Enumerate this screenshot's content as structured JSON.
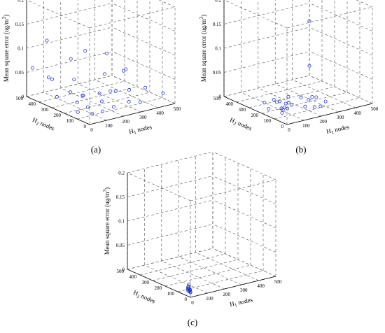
{
  "chart_data": [
    {
      "type": "scatter",
      "caption": "(a)",
      "zlabel": "Mean square error (ug/m3)",
      "xlabel": "H1 nodes",
      "ylabel": "H2 nodes",
      "xlim": [
        0,
        500
      ],
      "ylim": [
        0,
        500
      ],
      "zlim": [
        0,
        0.2
      ],
      "xticks": [
        "0",
        "100",
        "200",
        "300",
        "400",
        "500"
      ],
      "yticks": [
        "0",
        "100",
        "200",
        "300",
        "400",
        "500"
      ],
      "zticks": [
        "0",
        "0.05",
        "0.1",
        "0.15",
        "0.2"
      ],
      "grid": true,
      "points": [
        [
          20,
          480,
          0.06
        ],
        [
          60,
          420,
          0.12
        ],
        [
          40,
          380,
          0.05
        ],
        [
          120,
          460,
          0.03
        ],
        [
          160,
          340,
          0.04
        ],
        [
          200,
          420,
          0.07
        ],
        [
          30,
          300,
          0.02
        ],
        [
          80,
          260,
          0.03
        ],
        [
          140,
          240,
          0.02
        ],
        [
          180,
          300,
          0.01
        ],
        [
          220,
          220,
          0.02
        ],
        [
          60,
          180,
          0.02
        ],
        [
          100,
          150,
          0.01
        ],
        [
          240,
          160,
          0.03
        ],
        [
          280,
          260,
          0.05
        ],
        [
          300,
          200,
          0.02
        ],
        [
          20,
          120,
          0.01
        ],
        [
          160,
          120,
          0.02
        ],
        [
          200,
          80,
          0.01
        ],
        [
          320,
          120,
          0.03
        ],
        [
          360,
          200,
          0.06
        ],
        [
          400,
          100,
          0.03
        ],
        [
          120,
          60,
          0.01
        ],
        [
          260,
          40,
          0.02
        ],
        [
          340,
          60,
          0.01
        ],
        [
          420,
          300,
          0.04
        ],
        [
          460,
          40,
          0.02
        ],
        [
          60,
          60,
          0.01
        ],
        [
          240,
          360,
          0.09
        ],
        [
          380,
          380,
          0.07
        ]
      ]
    },
    {
      "type": "scatter",
      "caption": "(b)",
      "zlabel": "Mean square error (ug/m3)",
      "xlabel": "H1 nodes",
      "ylabel": "H2 nodes",
      "xlim": [
        0,
        500
      ],
      "ylim": [
        0,
        500
      ],
      "zlim": [
        0,
        0.2
      ],
      "xticks": [
        "0",
        "100",
        "200",
        "300",
        "400",
        "500"
      ],
      "yticks": [
        "0",
        "100",
        "200",
        "300",
        "400",
        "500"
      ],
      "zticks": [
        "0",
        "0.05",
        "0.1",
        "0.15",
        "0.2"
      ],
      "grid": true,
      "points": [
        [
          60,
          260,
          0.01
        ],
        [
          100,
          240,
          0.015
        ],
        [
          110,
          230,
          0.01
        ],
        [
          120,
          220,
          0.012
        ],
        [
          140,
          200,
          0.008
        ],
        [
          150,
          190,
          0.01
        ],
        [
          160,
          180,
          0.006
        ],
        [
          100,
          180,
          0.004
        ],
        [
          110,
          170,
          0.006
        ],
        [
          120,
          160,
          0.004
        ],
        [
          200,
          160,
          0.02
        ],
        [
          230,
          140,
          0.015
        ],
        [
          260,
          120,
          0.02
        ],
        [
          60,
          120,
          0.005
        ],
        [
          180,
          100,
          0.01
        ],
        [
          220,
          80,
          0.008
        ],
        [
          240,
          60,
          0.01
        ],
        [
          80,
          140,
          0.008
        ],
        [
          40,
          200,
          0.006
        ],
        [
          280,
          180,
          0.012
        ],
        [
          300,
          100,
          0.01
        ],
        [
          200,
          260,
          0.01
        ],
        [
          470,
          460,
          0.12
        ],
        [
          500,
          500,
          0.02
        ]
      ]
    },
    {
      "type": "scatter",
      "caption": "(c)",
      "zlabel": "Mean square error (ug/m3)",
      "xlabel": "H1 nodes",
      "ylabel": "H2 nodes",
      "xlim": [
        0,
        500
      ],
      "ylim": [
        0,
        500
      ],
      "zlim": [
        0,
        0.2
      ],
      "xticks": [
        "0",
        "100",
        "200",
        "300",
        "400",
        "500"
      ],
      "yticks": [
        "0",
        "100",
        "200",
        "300",
        "400",
        "500"
      ],
      "zticks": [
        "0",
        "0.05",
        "0.1",
        "0.15",
        "0.2"
      ],
      "grid": true,
      "points": [
        [
          20,
          40,
          0.02
        ],
        [
          22,
          42,
          0.015
        ],
        [
          18,
          38,
          0.012
        ],
        [
          24,
          36,
          0.01
        ],
        [
          20,
          34,
          0.008
        ],
        [
          16,
          42,
          0.01
        ],
        [
          22,
          30,
          0.006
        ],
        [
          18,
          32,
          0.007
        ],
        [
          26,
          40,
          0.009
        ],
        [
          20,
          46,
          0.014
        ],
        [
          14,
          36,
          0.008
        ],
        [
          24,
          44,
          0.011
        ],
        [
          21,
          28,
          0.005
        ],
        [
          19,
          44,
          0.012
        ],
        [
          23,
          34,
          0.009
        ]
      ]
    }
  ]
}
